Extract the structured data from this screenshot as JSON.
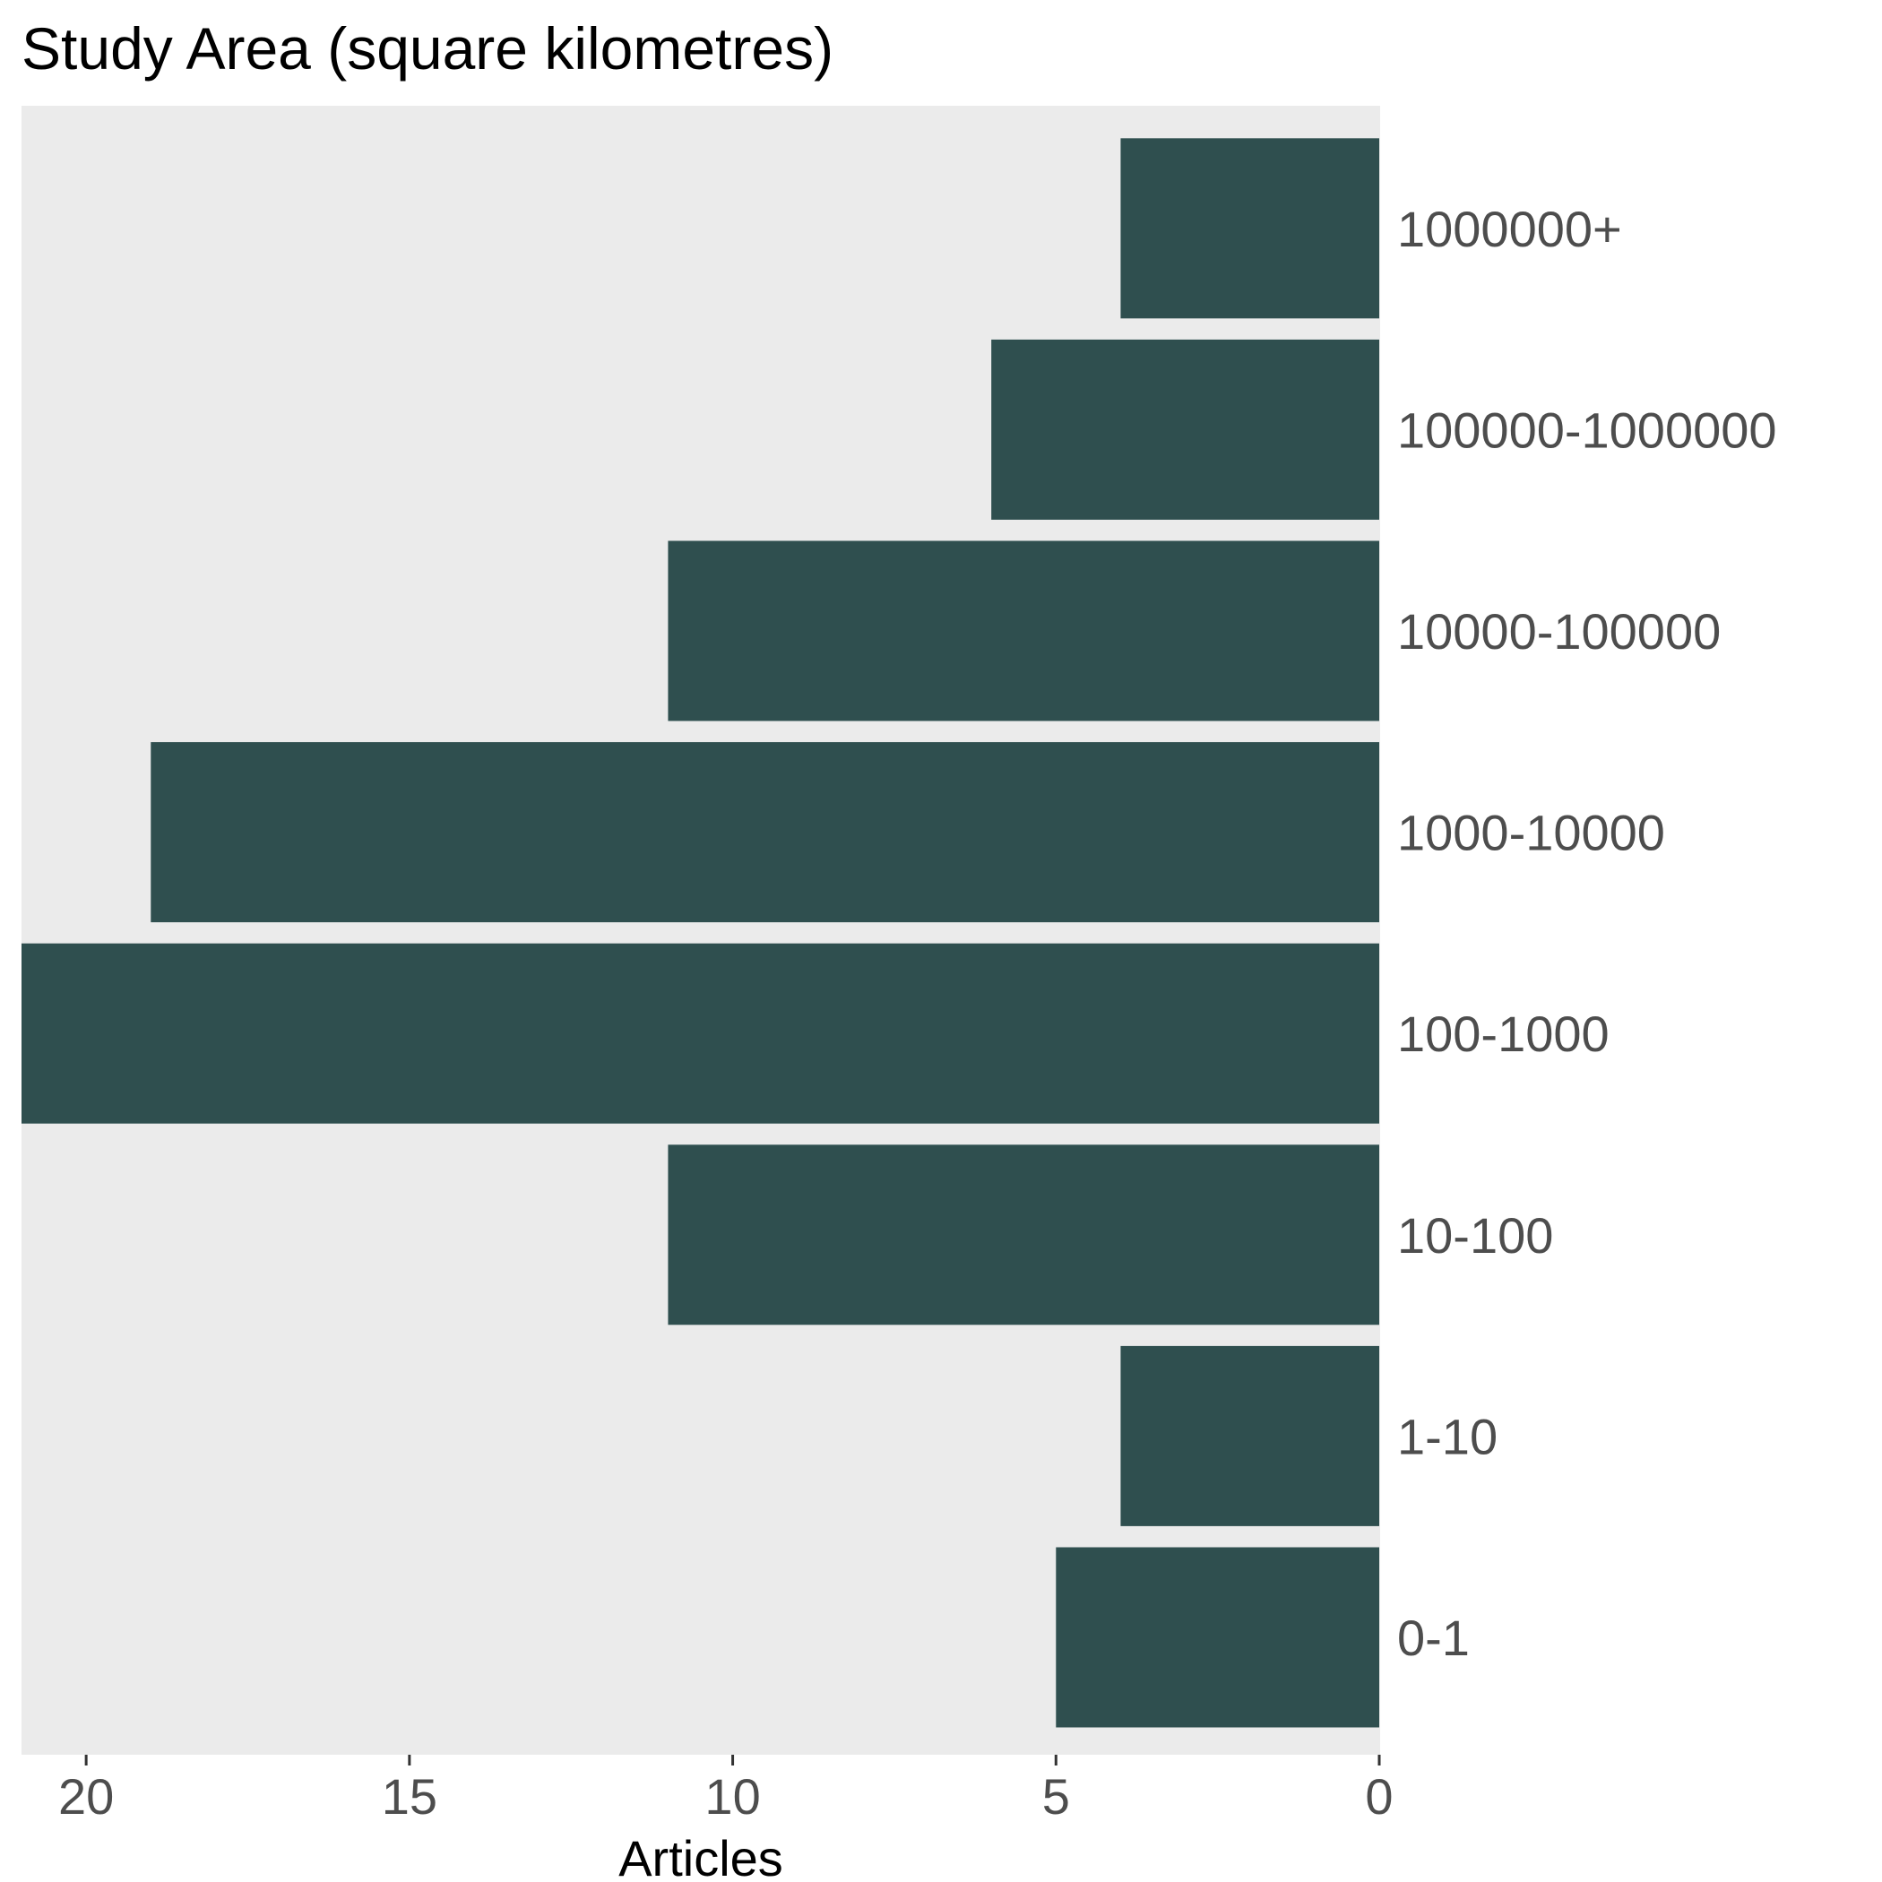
{
  "colors": {
    "panel": "#ebebeb",
    "bar": "#2f4f4f",
    "tick_text": "#4d4d4d",
    "title_text": "#000000"
  },
  "chart_data": {
    "type": "bar",
    "orientation": "horizontal",
    "x_reversed": true,
    "title": "Study Area (square kilometres)",
    "xlabel": "Articles",
    "ylabel": "",
    "categories": [
      "0-1",
      "1-10",
      "10-100",
      "100-1000",
      "1000-10000",
      "10000-100000",
      "100000-1000000",
      "1000000+"
    ],
    "values": [
      5,
      4,
      11,
      21,
      19,
      11,
      6,
      4
    ],
    "xlim": [
      0,
      21
    ],
    "xticks": [
      20,
      15,
      10,
      5,
      0
    ],
    "xtick_labels": [
      "20",
      "15",
      "10",
      "5",
      "0"
    ],
    "category_axis_position": "right",
    "grid": false,
    "legend": "none"
  }
}
